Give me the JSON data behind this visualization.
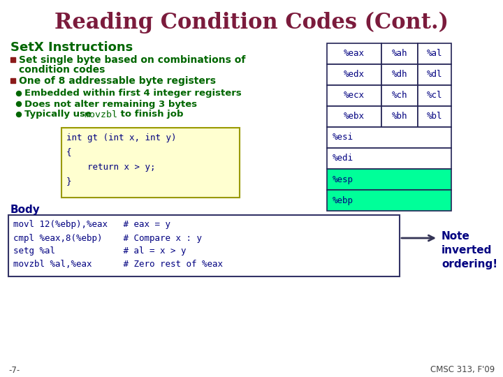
{
  "title": "Reading Condition Codes (Cont.)",
  "title_color": "#7B1B3C",
  "bg_color": "#FFFFFF",
  "setx_label": "SetX Instructions",
  "setx_color": "#006600",
  "bullet_square_color": "#8B1A1A",
  "bullet_text_color": "#006600",
  "sub_bullet_dot_color": "#006600",
  "sub_bullet_text_color": "#006600",
  "code_box_bg": "#FFFFD0",
  "code_box_border": "#999900",
  "code_lines": [
    "int gt (int x, int y)",
    "{",
    "    return x > y;",
    "}"
  ],
  "code_color": "#000080",
  "body_label": "Body",
  "body_label_color": "#000080",
  "body_code_lines": [
    "movl 12(%ebp),%eax   # eax = y",
    "cmpl %eax,8(%ebp)    # Compare x : y",
    "setg %al             # al = x > y",
    "movzbl %al,%eax      # Zero rest of %eax"
  ],
  "body_box_bg": "#FFFFFF",
  "body_box_border": "#333366",
  "body_code_color": "#000080",
  "arrow_color": "#333355",
  "note_text": "Note\ninverted\nordering!",
  "note_color": "#000080",
  "table_rows": [
    [
      "%eax",
      "%ah",
      "%al"
    ],
    [
      "%edx",
      "%dh",
      "%dl"
    ],
    [
      "%ecx",
      "%ch",
      "%cl"
    ],
    [
      "%ebx",
      "%bh",
      "%bl"
    ],
    [
      "%esi",
      "",
      ""
    ],
    [
      "%edi",
      "",
      ""
    ],
    [
      "%esp",
      "",
      ""
    ],
    [
      "%ebp",
      "",
      ""
    ]
  ],
  "table_border_color": "#222255",
  "table_text_color": "#000080",
  "table_bg_normal": "#FFFFFF",
  "table_bg_highlight": "#00FF99",
  "table_highlight_rows": [
    6,
    7
  ],
  "footer_left": "-7-",
  "footer_right": "CMSC 313, F'09",
  "footer_color": "#444444"
}
